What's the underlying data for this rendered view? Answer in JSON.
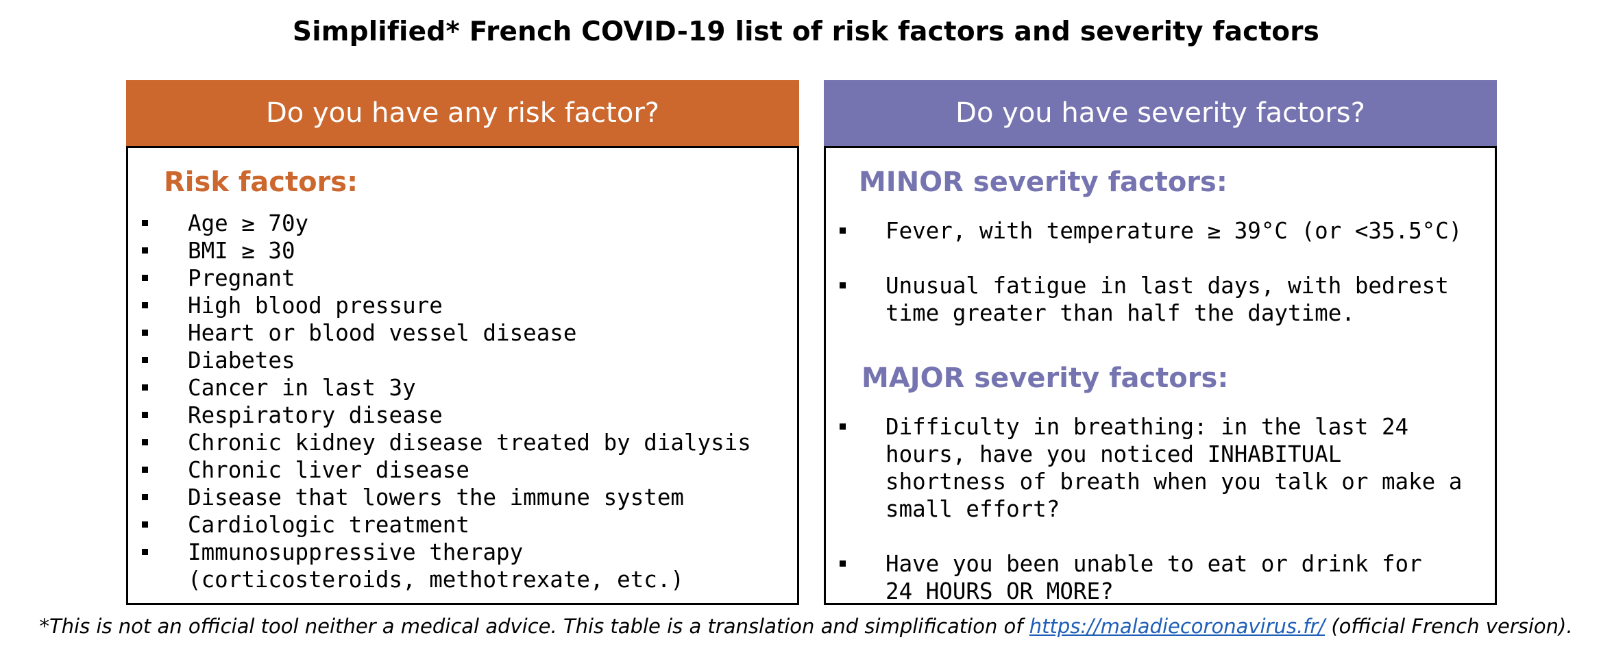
{
  "title": "Simplified* French COVID-19 list of risk factors and severity factors",
  "colors": {
    "risk_accent": "#cc672e",
    "severity_accent": "#7674b0",
    "link": "#1f5fb8"
  },
  "left_panel": {
    "header": "Do you have any risk factor?",
    "section_title": "Risk factors:",
    "items": [
      "Age ≥ 70y",
      "BMI ≥ 30",
      "Pregnant",
      "High blood pressure",
      "Heart or blood vessel disease",
      "Diabetes",
      "Cancer in last 3y",
      "Respiratory disease",
      "Chronic kidney disease treated by dialysis",
      "Chronic liver disease",
      "Disease that lowers the immune system",
      "Cardiologic treatment",
      "Immunosuppressive therapy (corticosteroids, methotrexate, etc.)"
    ]
  },
  "right_panel": {
    "header": "Do you have severity factors?",
    "minor_title": "MINOR severity factors:",
    "minor_items": [
      "Fever, with temperature ≥ 39°C (or <35.5°C)",
      "Unusual fatigue in last days, with bedrest time greater than half the daytime."
    ],
    "major_title": "MAJOR severity factors:",
    "major_items": [
      "Difficulty in breathing: in the last 24 hours, have you noticed INHABITUAL shortness of breath when you talk or make a small effort?",
      "Have you been unable to eat or drink for 24 HOURS OR MORE?"
    ]
  },
  "footnote": {
    "text_before": "*This is not an official tool neither a medical advice. This table is a translation and simplification of ",
    "link_text": "https://maladiecoronavirus.fr/",
    "text_after": " (official French version)."
  }
}
